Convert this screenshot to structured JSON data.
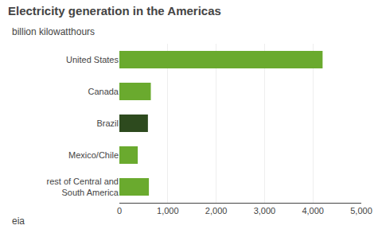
{
  "chart_data": {
    "type": "bar",
    "orientation": "horizontal",
    "title": "Electricity generation in the Americas",
    "subtitle": "billion kilowatthours",
    "categories": [
      "United States",
      "Canada",
      "Brazil",
      "Mexico/Chile",
      "rest of Central and\nSouth America"
    ],
    "values": [
      4200,
      650,
      590,
      380,
      610
    ],
    "colors": [
      "#6aaa2e",
      "#6aaa2e",
      "#2d4a1e",
      "#6aaa2e",
      "#6aaa2e"
    ],
    "xlim": [
      0,
      5000
    ],
    "xticks": [
      0,
      {
        "value": 1000,
        "label": "1,000"
      },
      {
        "value": 2000,
        "label": "2,000"
      },
      {
        "value": 3000,
        "label": "3,000"
      },
      {
        "value": 4000,
        "label": "4,000"
      },
      {
        "value": 5000,
        "label": "5,000"
      }
    ],
    "grid": true,
    "annotations": [
      "eia"
    ]
  }
}
